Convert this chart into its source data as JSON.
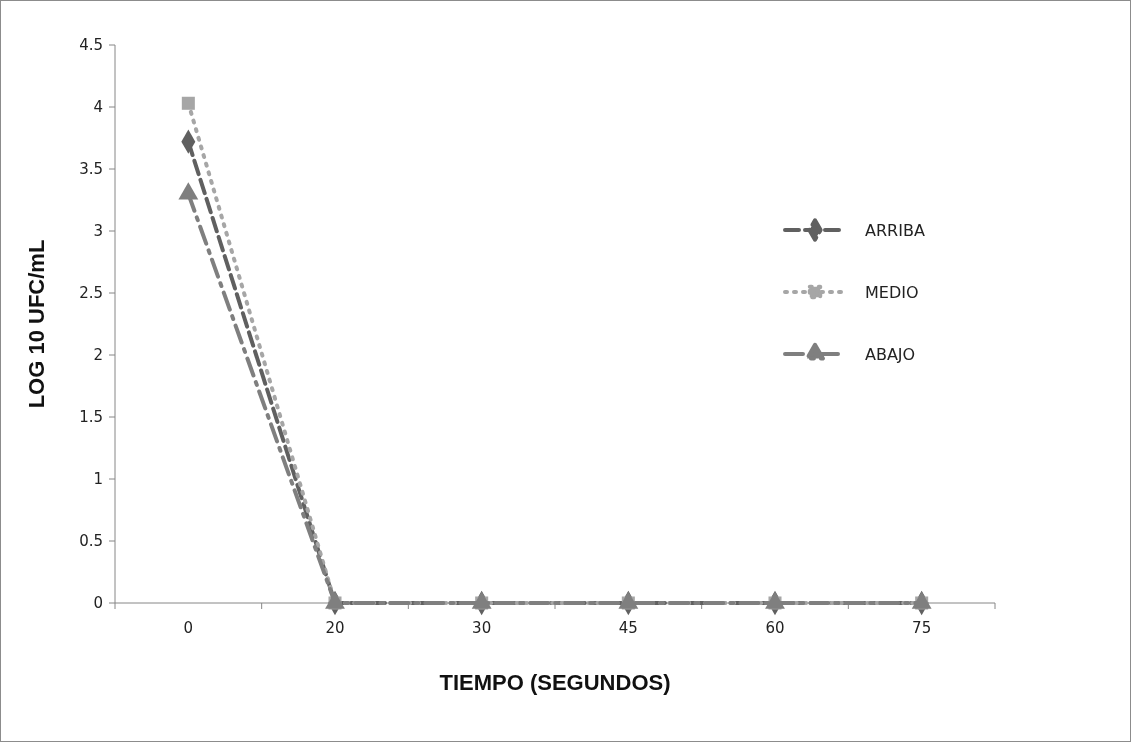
{
  "chart_data": {
    "type": "line",
    "xlabel": "TIEMPO (SEGUNDOS)",
    "ylabel": "LOG 10 UFC/mL",
    "categories": [
      "0",
      "20",
      "30",
      "45",
      "60",
      "75"
    ],
    "series": [
      {
        "name": "ARRIBA",
        "color": "#606060",
        "values": [
          3.72,
          0,
          0,
          0,
          0,
          0
        ],
        "marker": "diamond",
        "line_style": "dashed"
      },
      {
        "name": "MEDIO",
        "color": "#a6a6a6",
        "values": [
          4.03,
          0,
          0,
          0,
          0,
          0
        ],
        "marker": "square",
        "line_style": "dotted"
      },
      {
        "name": "ABAJO",
        "color": "#7f7f7f",
        "values": [
          3.3,
          0,
          0,
          0,
          0,
          0
        ],
        "marker": "triangle",
        "line_style": "dashdot"
      }
    ],
    "ylim": [
      0,
      4.5
    ],
    "yticks": [
      0,
      0.5,
      1,
      1.5,
      2,
      2.5,
      3,
      3.5,
      4,
      4.5
    ],
    "grid": false,
    "legend": "right"
  }
}
